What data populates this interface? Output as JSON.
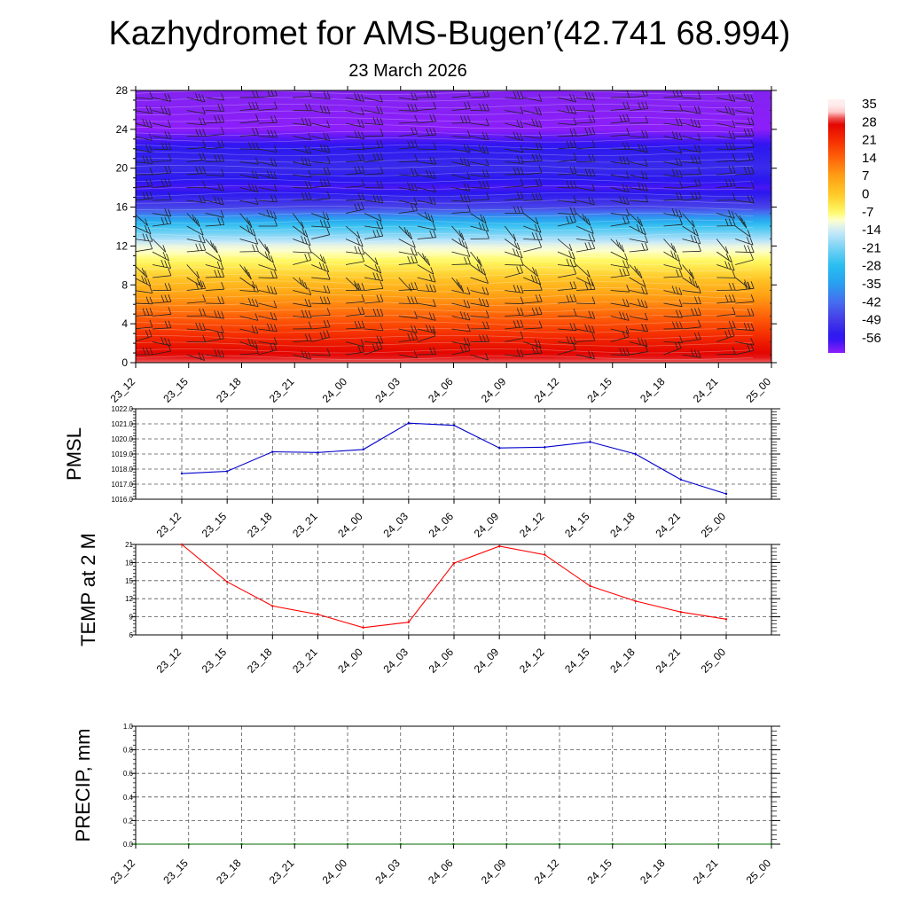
{
  "header": {
    "title": "Kazhydromet for AMS-Bugen’(42.741 68.994)",
    "subtitle": "23 March 2026"
  },
  "chart_data": [
    {
      "id": "cross-section",
      "type": "heatmap",
      "title": "Kazhydromet for AMS-Bugen’(42.741 68.994)",
      "subtitle": "23 March 2026",
      "x": [
        "23_12",
        "23_15",
        "23_18",
        "23_21",
        "24_00",
        "24_03",
        "24_06",
        "24_09",
        "24_12",
        "24_15",
        "24_18",
        "24_21",
        "25_00"
      ],
      "y_ticks": [
        0,
        4,
        8,
        12,
        16,
        20,
        24,
        28
      ],
      "ylim": [
        0,
        28
      ],
      "levels": [
        0,
        2,
        4,
        6,
        8,
        10,
        12,
        14,
        16,
        18,
        20,
        22,
        24,
        26,
        28
      ],
      "temperature_profile": [
        30,
        24,
        17,
        10,
        3,
        -5,
        -12,
        -26,
        -48,
        -58,
        -52,
        -55,
        -62,
        -64,
        -66
      ],
      "colorbar_labels": [
        "35",
        "28",
        "21",
        "14",
        "7",
        "0",
        "-7",
        "-14",
        "-21",
        "-28",
        "-35",
        "-42",
        "-49",
        "-56"
      ],
      "wind_barbs": true
    },
    {
      "id": "pmsl",
      "type": "line",
      "ylabel": "PMSL",
      "x": [
        "23_12",
        "23_15",
        "23_18",
        "23_21",
        "24_00",
        "24_03",
        "24_06",
        "24_09",
        "24_12",
        "24_15",
        "24_18",
        "24_21",
        "25_00"
      ],
      "y_ticks": [
        "1016.0",
        "1017.0",
        "1018.0",
        "1019.0",
        "1020.0",
        "1021.0",
        "1022.0"
      ],
      "ylim": [
        1016,
        1022
      ],
      "series": [
        {
          "name": "PMSL",
          "color": "#0000cc",
          "values": [
            1017.7,
            1017.85,
            1019.15,
            1019.1,
            1019.3,
            1021.05,
            1020.9,
            1019.4,
            1019.45,
            1019.8,
            1019.0,
            1017.3,
            1016.35
          ]
        }
      ]
    },
    {
      "id": "temp2m",
      "type": "line",
      "ylabel": "TEMP at 2 M",
      "x": [
        "23_12",
        "23_15",
        "23_18",
        "23_21",
        "24_00",
        "24_03",
        "24_06",
        "24_09",
        "24_12",
        "24_15",
        "24_18",
        "24_21",
        "25_00"
      ],
      "y_ticks": [
        "6",
        "9",
        "12",
        "15",
        "18",
        "21"
      ],
      "ylim": [
        6,
        21
      ],
      "series": [
        {
          "name": "TEMP at 2 M",
          "color": "#ff0000",
          "values": [
            21.0,
            14.8,
            10.8,
            9.4,
            7.2,
            8.1,
            17.9,
            20.7,
            19.3,
            14.1,
            11.6,
            9.8,
            8.6
          ]
        }
      ]
    },
    {
      "id": "precip",
      "type": "line",
      "ylabel": "PRECIP, mm",
      "x": [
        "23_12",
        "23_15",
        "23_18",
        "23_21",
        "24_00",
        "24_03",
        "24_06",
        "24_09",
        "24_12",
        "24_15",
        "24_18",
        "24_21",
        "25_00"
      ],
      "y_ticks": [
        "0.0",
        "0.2",
        "0.4",
        "0.6",
        "0.8",
        "1.0"
      ],
      "ylim": [
        0,
        1
      ],
      "series": [
        {
          "name": "PRECIP",
          "color": "#006600",
          "values": [
            0,
            0,
            0,
            0,
            0,
            0,
            0,
            0,
            0,
            0,
            0,
            0,
            0
          ]
        }
      ]
    }
  ]
}
